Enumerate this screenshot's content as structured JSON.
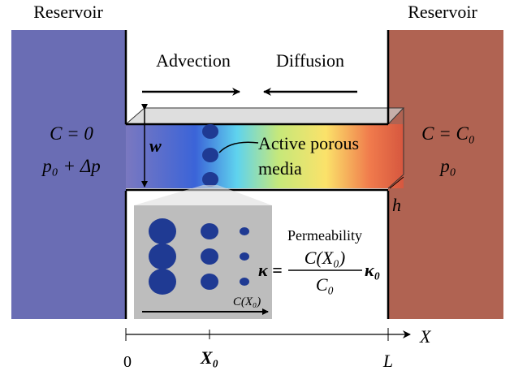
{
  "reservoirs": {
    "left": {
      "label": "Reservoir",
      "concentration": "C = 0",
      "pressure": "p₀ + Δp"
    },
    "right": {
      "label": "Reservoir",
      "concentration": "C = C₀",
      "pressure": "p₀"
    }
  },
  "flows": {
    "advection": "Advection",
    "diffusion": "Diffusion"
  },
  "channel": {
    "width": "w",
    "height": "h",
    "media_label": [
      "Active porous",
      "media"
    ]
  },
  "inset": {
    "title": "Permeability",
    "formula": {
      "lhs": "κ =",
      "numerator": "C(X₀)",
      "denominator": "C₀",
      "factor": "κ₀"
    },
    "arrow_label": "C(X₀)"
  },
  "axis": {
    "label": "X",
    "ticks": [
      "0",
      "X₀",
      "L"
    ]
  }
}
